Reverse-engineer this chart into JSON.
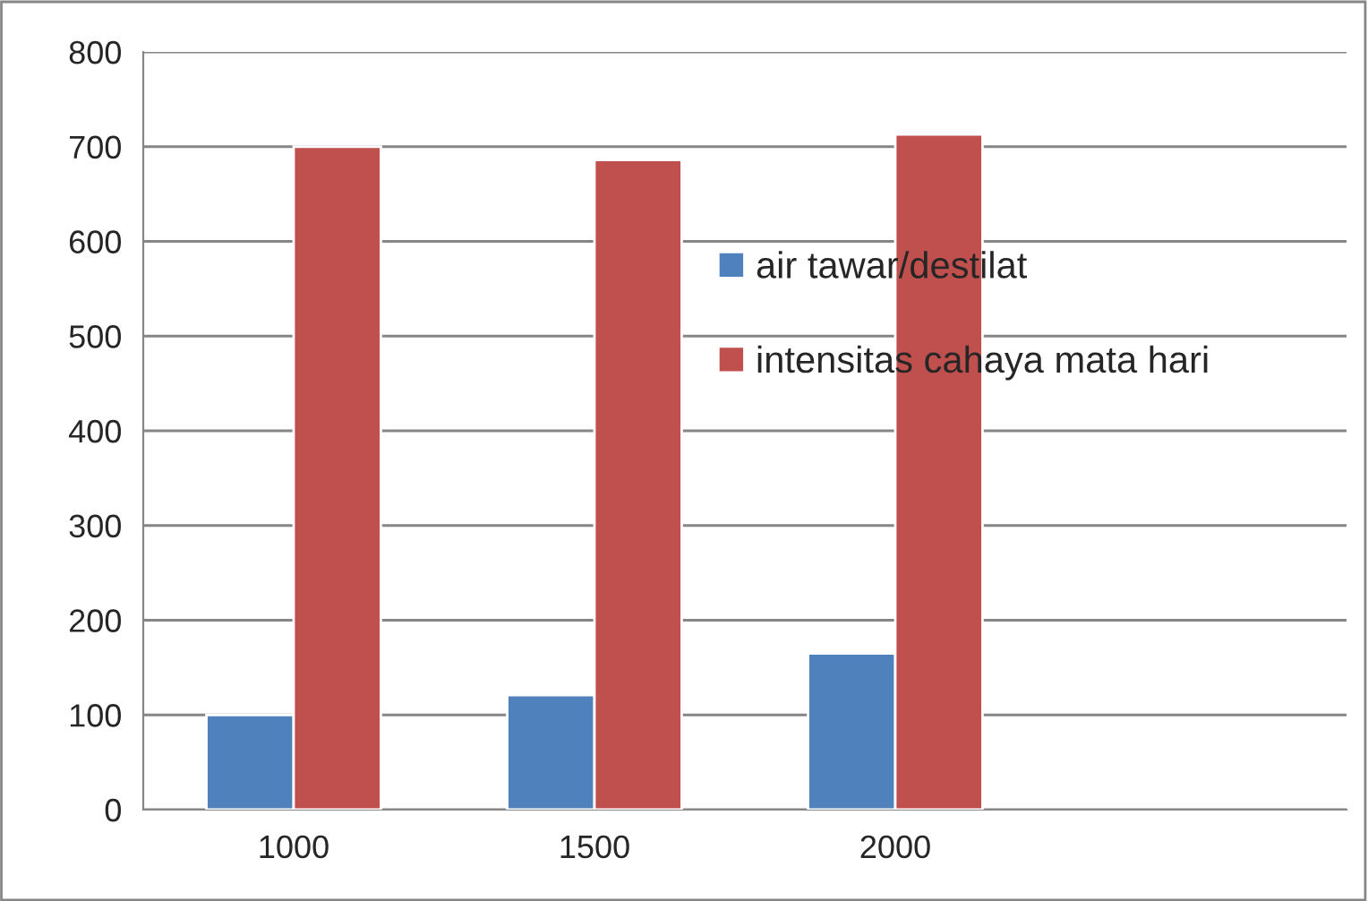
{
  "chart_data": {
    "type": "bar",
    "categories": [
      "1000",
      "1500",
      "2000",
      null
    ],
    "series": [
      {
        "name": "air tawar/destilat",
        "color": "#4f81bd",
        "values": [
          100,
          121,
          165,
          null
        ]
      },
      {
        "name": "intensitas cahaya mata hari",
        "color": "#c0504d",
        "values": [
          700,
          686,
          713,
          null
        ]
      }
    ],
    "ylim": [
      0,
      800
    ],
    "yticks": [
      0,
      100,
      200,
      300,
      400,
      500,
      600,
      700,
      800
    ],
    "grid": "y",
    "legend": "right"
  }
}
